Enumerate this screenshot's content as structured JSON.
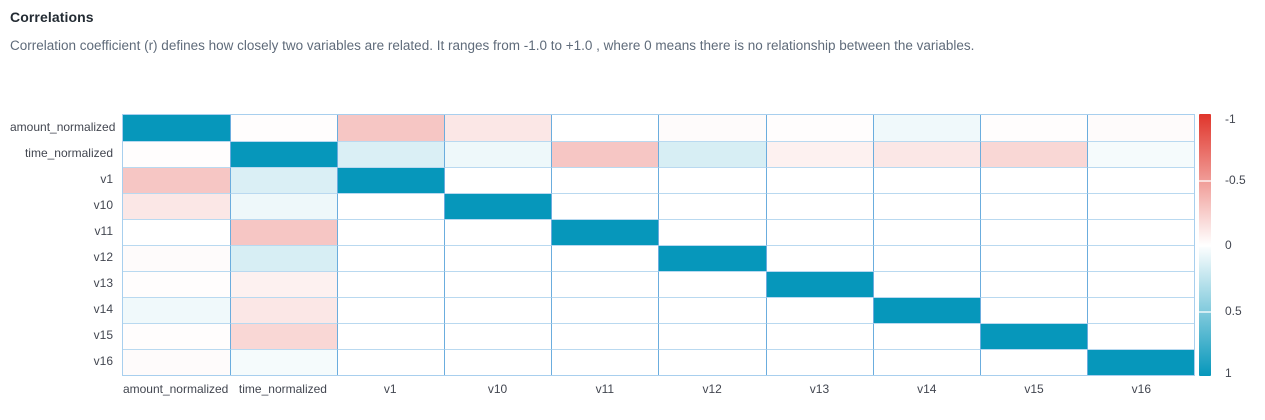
{
  "header": {
    "title": "Correlations",
    "description": "Correlation coefficient (r) defines how closely two variables are related. It ranges from -1.0 to +1.0 , where 0 means there is no relationship between the variables."
  },
  "chart_data": {
    "type": "heatmap",
    "title": "Correlations",
    "variables": [
      "amount_normalized",
      "time_normalized",
      "v1",
      "v10",
      "v11",
      "v12",
      "v13",
      "v14",
      "v15",
      "v16"
    ],
    "matrix": [
      [
        1.0,
        -0.01,
        -0.28,
        -0.12,
        0.0,
        -0.02,
        -0.01,
        0.06,
        -0.01,
        -0.02
      ],
      [
        -0.01,
        1.0,
        0.15,
        0.07,
        -0.28,
        0.16,
        -0.07,
        -0.12,
        -0.2,
        0.04
      ],
      [
        -0.28,
        0.15,
        1.0,
        0.0,
        0.0,
        0.0,
        0.0,
        0.0,
        0.0,
        0.0
      ],
      [
        -0.12,
        0.07,
        0.0,
        1.0,
        0.0,
        0.0,
        0.0,
        0.0,
        0.0,
        0.0
      ],
      [
        0.0,
        -0.28,
        0.0,
        0.0,
        1.0,
        0.0,
        0.0,
        0.0,
        0.0,
        0.0
      ],
      [
        -0.02,
        0.16,
        0.0,
        0.0,
        0.0,
        1.0,
        0.0,
        0.0,
        0.0,
        0.0
      ],
      [
        -0.01,
        -0.07,
        0.0,
        0.0,
        0.0,
        0.0,
        1.0,
        0.0,
        0.0,
        0.0
      ],
      [
        0.06,
        -0.12,
        0.0,
        0.0,
        0.0,
        0.0,
        0.0,
        1.0,
        0.0,
        0.0
      ],
      [
        -0.01,
        -0.2,
        0.0,
        0.0,
        0.0,
        0.0,
        0.0,
        0.0,
        1.0,
        0.0
      ],
      [
        -0.02,
        0.04,
        0.0,
        0.0,
        0.0,
        0.0,
        0.0,
        0.0,
        0.0,
        1.0
      ]
    ],
    "value_range": [
      -1,
      1
    ],
    "grid": true,
    "legend_position": "right",
    "colorbar": {
      "ticks": [
        "-1",
        "-0.5",
        "0",
        "0.5",
        "1"
      ],
      "min": -1,
      "max": 1
    },
    "colors": {
      "negative": "#e0352b",
      "zero": "#ffffff",
      "positive": "#0697bb",
      "grid_vertical": "#6badde",
      "grid_horizontal": "#b9d9f0",
      "grid_outer": "#a8cfee"
    }
  }
}
